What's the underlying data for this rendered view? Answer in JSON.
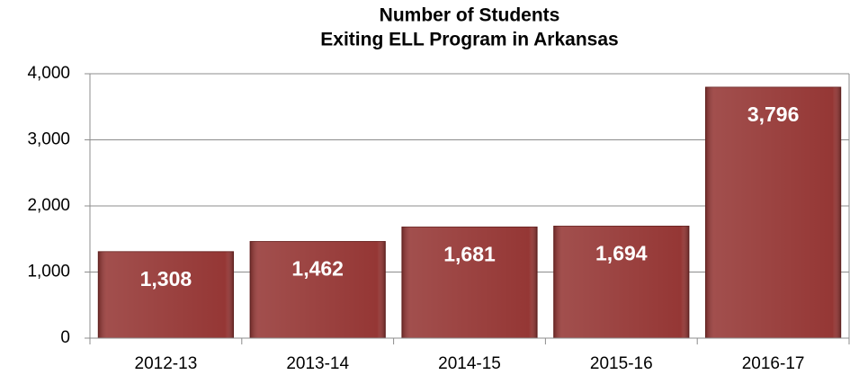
{
  "chart_data": {
    "type": "bar",
    "title": [
      "Number of Students",
      "Exiting ELL Program in Arkansas"
    ],
    "categories": [
      "2012-13",
      "2013-14",
      "2014-15",
      "2015-16",
      "2016-17"
    ],
    "values": [
      1308,
      1462,
      1681,
      1694,
      3796
    ],
    "value_labels": [
      "1,308",
      "1,462",
      "1,681",
      "1,694",
      "3,796"
    ],
    "color": "#953735",
    "ylim": [
      0,
      4000
    ],
    "yticks": [
      0,
      {
        "value": 1000,
        "label": "1,000"
      },
      {
        "value": 2000,
        "label": "2,000"
      },
      {
        "value": 3000,
        "label": "3,000"
      },
      {
        "value": 4000,
        "label": "4,000"
      }
    ],
    "grid": true
  }
}
